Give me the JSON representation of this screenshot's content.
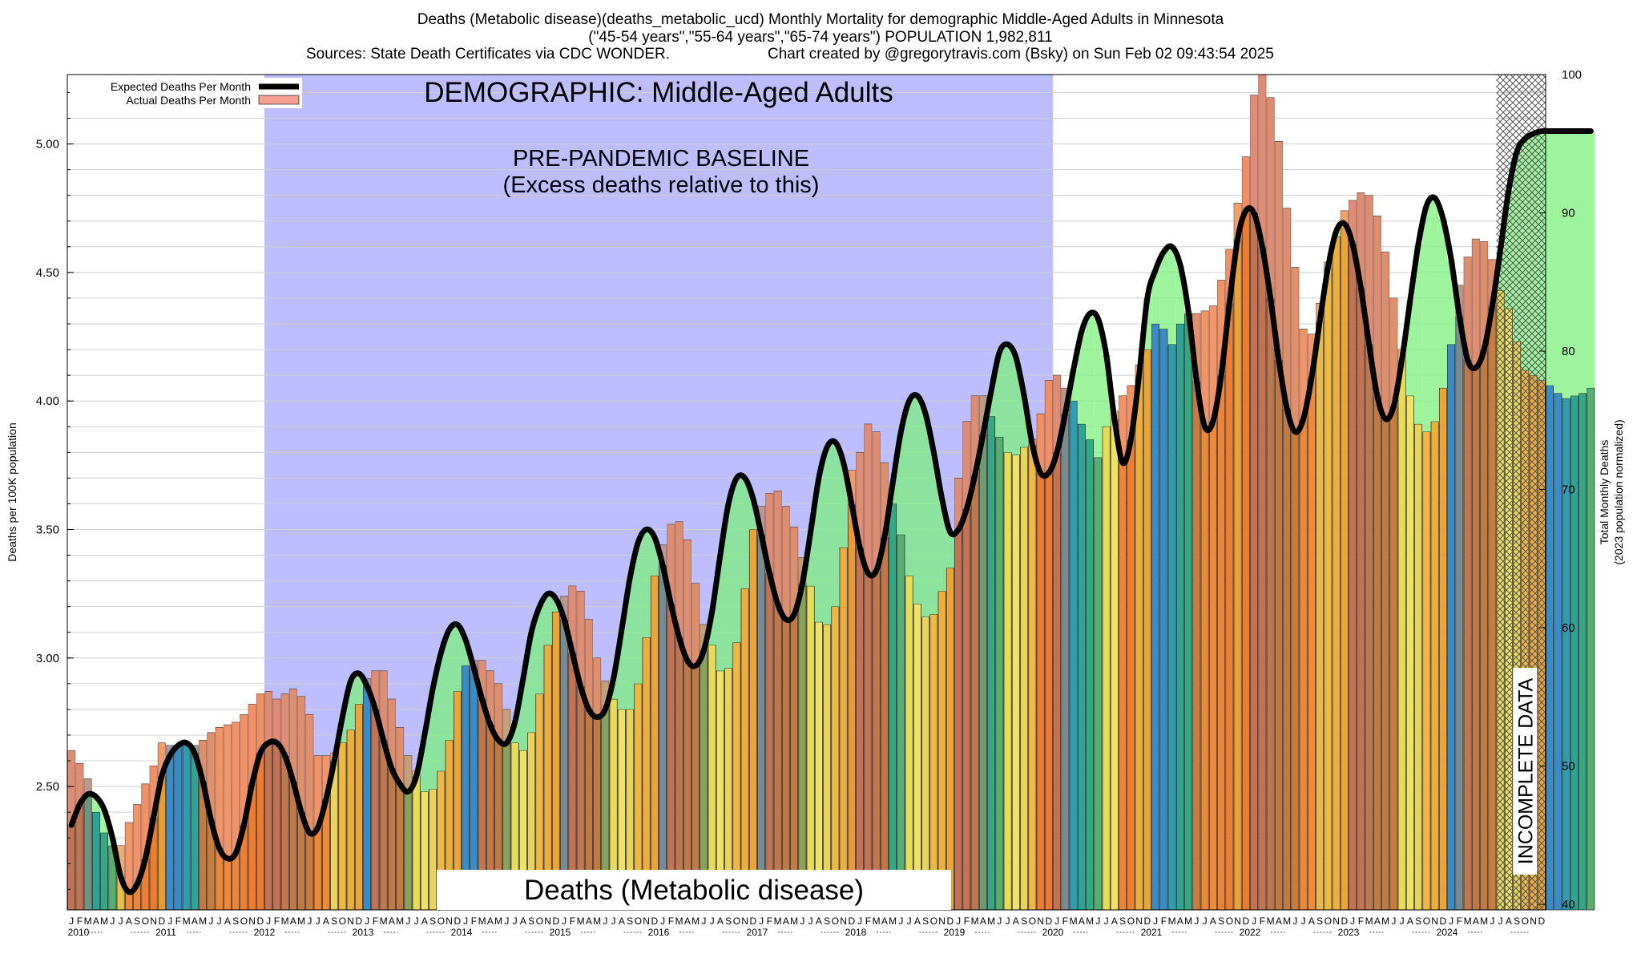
{
  "header": {
    "title_line1": "Deaths (Metabolic disease)(deaths_metabolic_ucd) Monthly Mortality for demographic Middle-Aged Adults in Minnesota",
    "title_line2": "(\"45-54 years\",\"55-64 years\",\"65-74 years\") POPULATION 1,982,811",
    "sources": "Sources: State Death Certificates via CDC WONDER.",
    "credit": "Chart created by @gregorytravis.com (Bsky) on Sun Feb 02 09:43:54 2025"
  },
  "legend": {
    "expected_label": "Expected Deaths Per Month",
    "actual_label": "Actual Deaths Per Month",
    "placement": "top-left"
  },
  "annotations": {
    "demographic": "DEMOGRAPHIC: Middle-Aged Adults",
    "baseline_line1": "PRE-PANDEMIC BASELINE",
    "baseline_line2": "(Excess deaths relative to this)",
    "cause_banner": "Deaths (Metabolic disease)",
    "incomplete": "INCOMPLETE DATA"
  },
  "chart_data": {
    "type": "bar",
    "ylabel_left": "Deaths per 100K population",
    "ylabel_right_line1": "Total Monthly Deaths",
    "ylabel_right_line2": "(2023 population normalized)",
    "ylim_left": [
      2.02,
      5.27
    ],
    "ylim_right": [
      39.6,
      100
    ],
    "left_ticks": [
      "2.50",
      "3.00",
      "3.50",
      "4.00",
      "4.50",
      "5.00"
    ],
    "right_ticks": [
      "40",
      "50",
      "60",
      "70",
      "80",
      "90",
      "100"
    ],
    "month_letters": [
      "J",
      "F",
      "M",
      "A",
      "M",
      "J",
      "J",
      "A",
      "S",
      "O",
      "N",
      "D"
    ],
    "years": [
      "2010",
      "2011",
      "2012",
      "2013",
      "2014",
      "2015",
      "2016",
      "2017",
      "2018",
      "2019",
      "2020",
      "2021",
      "2022",
      "2023",
      "2024"
    ],
    "start": "2010-01",
    "baseline_period": [
      "2012-01",
      "2019-12"
    ],
    "incomplete_period": [
      "2024-07",
      "2024-12"
    ],
    "grid": true,
    "actual": [
      2.64,
      2.59,
      2.53,
      2.4,
      2.32,
      2.27,
      2.27,
      2.36,
      2.43,
      2.51,
      2.58,
      2.67,
      2.66,
      2.66,
      2.66,
      2.66,
      2.68,
      2.71,
      2.73,
      2.74,
      2.75,
      2.78,
      2.82,
      2.86,
      2.87,
      2.84,
      2.86,
      2.88,
      2.85,
      2.78,
      2.62,
      2.62,
      2.63,
      2.67,
      2.72,
      2.82,
      2.92,
      2.95,
      2.95,
      2.84,
      2.73,
      2.62,
      2.56,
      2.48,
      2.49,
      2.56,
      2.68,
      2.87,
      2.97,
      2.99,
      2.99,
      2.95,
      2.9,
      2.8,
      2.67,
      2.64,
      2.71,
      2.86,
      3.05,
      3.18,
      3.24,
      3.28,
      3.26,
      3.15,
      3.0,
      2.91,
      2.84,
      2.8,
      2.8,
      2.9,
      3.08,
      3.32,
      3.44,
      3.52,
      3.53,
      3.46,
      3.29,
      3.13,
      3.05,
      2.95,
      2.96,
      3.06,
      3.27,
      3.5,
      3.59,
      3.64,
      3.65,
      3.59,
      3.51,
      3.39,
      3.28,
      3.14,
      3.13,
      3.2,
      3.43,
      3.73,
      3.8,
      3.91,
      3.88,
      3.76,
      3.6,
      3.48,
      3.32,
      3.21,
      3.16,
      3.17,
      3.26,
      3.35,
      3.7,
      3.92,
      4.02,
      4.02,
      3.94,
      3.86,
      3.8,
      3.79,
      3.82,
      3.85,
      3.95,
      4.08,
      4.1,
      4.05,
      4.0,
      3.91,
      3.85,
      3.78,
      3.9,
      3.96,
      4.02,
      4.06,
      4.14,
      4.2,
      4.3,
      4.28,
      4.22,
      4.3,
      4.34,
      4.34,
      4.35,
      4.37,
      4.47,
      4.59,
      4.77,
      4.95,
      5.19,
      5.27,
      5.18,
      5.01,
      4.75,
      4.52,
      4.28,
      4.26,
      4.38,
      4.54,
      4.64,
      4.74,
      4.78,
      4.81,
      4.8,
      4.72,
      4.58,
      4.4,
      4.2,
      4.02,
      3.91,
      3.88,
      3.92,
      4.05,
      4.22,
      4.45,
      4.56,
      4.63,
      4.62,
      4.55,
      4.43,
      4.36,
      4.23,
      4.12,
      4.1,
      4.08,
      4.06,
      4.03,
      4.01,
      4.02,
      4.03,
      4.05
    ],
    "expected": [
      2.35,
      2.43,
      2.47,
      2.46,
      2.41,
      2.3,
      2.15,
      2.09,
      2.12,
      2.22,
      2.38,
      2.54,
      2.62,
      2.66,
      2.67,
      2.63,
      2.52,
      2.37,
      2.26,
      2.22,
      2.24,
      2.35,
      2.51,
      2.63,
      2.67,
      2.67,
      2.62,
      2.52,
      2.4,
      2.32,
      2.34,
      2.45,
      2.6,
      2.77,
      2.91,
      2.94,
      2.89,
      2.8,
      2.68,
      2.57,
      2.51,
      2.48,
      2.54,
      2.7,
      2.88,
      3.02,
      3.11,
      3.13,
      3.07,
      2.96,
      2.84,
      2.74,
      2.68,
      2.67,
      2.75,
      2.92,
      3.1,
      3.2,
      3.25,
      3.23,
      3.15,
      3.02,
      2.89,
      2.8,
      2.77,
      2.8,
      2.92,
      3.11,
      3.31,
      3.45,
      3.5,
      3.47,
      3.36,
      3.21,
      3.08,
      2.99,
      2.97,
      3.03,
      3.18,
      3.4,
      3.6,
      3.7,
      3.7,
      3.62,
      3.48,
      3.33,
      3.21,
      3.15,
      3.17,
      3.29,
      3.49,
      3.7,
      3.82,
      3.84,
      3.76,
      3.6,
      3.43,
      3.33,
      3.34,
      3.47,
      3.68,
      3.88,
      4.0,
      4.02,
      3.95,
      3.8,
      3.62,
      3.49,
      3.5,
      3.58,
      3.71,
      3.87,
      4.04,
      4.19,
      4.22,
      4.17,
      4.02,
      3.83,
      3.72,
      3.72,
      3.8,
      3.95,
      4.12,
      4.27,
      4.34,
      4.32,
      4.18,
      3.93,
      3.76,
      3.85,
      4.1,
      4.4,
      4.51,
      4.58,
      4.6,
      4.53,
      4.35,
      4.08,
      3.9,
      3.92,
      4.1,
      4.38,
      4.63,
      4.74,
      4.73,
      4.6,
      4.4,
      4.16,
      3.97,
      3.88,
      3.93,
      4.09,
      4.31,
      4.52,
      4.66,
      4.69,
      4.61,
      4.44,
      4.22,
      4.02,
      3.93,
      3.98,
      4.16,
      4.39,
      4.61,
      4.76,
      4.79,
      4.71,
      4.55,
      4.33,
      4.16,
      4.13,
      4.2,
      4.37,
      4.59,
      4.82,
      4.97,
      5.02,
      5.04,
      5.05,
      5.05,
      5.05,
      5.05,
      5.05,
      5.05,
      5.05
    ],
    "year_colors": [
      "#2E9E8A",
      "#F0B840",
      "#3E8FC0",
      "#E8E060"
    ]
  }
}
